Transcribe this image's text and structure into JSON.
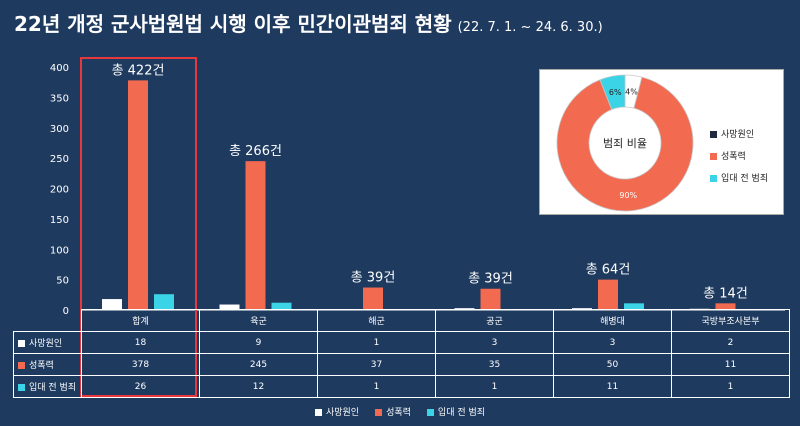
{
  "title": "22년 개정 군사법원법 시행 이후 민간이관범죄 현황",
  "subtitle": "(22. 7. 1. ~ 24. 6. 30.)",
  "colors": {
    "background": "#1e3a5f",
    "death": "#ffffff",
    "sexual": "#f26a50",
    "pre": "#3ad4e6",
    "highlight": "#e8383d"
  },
  "chart_data": {
    "type": "bar",
    "categories": [
      "합계",
      "육군",
      "해군",
      "공군",
      "해병대",
      "국방부조사본부"
    ],
    "series": [
      {
        "name": "사망원인",
        "values": [
          18,
          9,
          1,
          3,
          3,
          2
        ]
      },
      {
        "name": "성폭력",
        "values": [
          378,
          245,
          37,
          35,
          50,
          11
        ]
      },
      {
        "name": "입대 전 범죄",
        "values": [
          26,
          12,
          1,
          1,
          11,
          1
        ]
      }
    ],
    "totals": [
      "총 422건",
      "총 266건",
      "총 39건",
      "총 39건",
      "총 64건",
      "총 14건"
    ],
    "ylim": [
      0,
      400
    ],
    "yticks": [
      0,
      50,
      100,
      150,
      200,
      250,
      300,
      350,
      400
    ],
    "pie": {
      "title": "범죄 비율",
      "slices": [
        {
          "name": "사망원인",
          "value": 4,
          "label": "4%"
        },
        {
          "name": "성폭력",
          "value": 90,
          "label": "90%"
        },
        {
          "name": "입대 전 범죄",
          "value": 6,
          "label": "6%"
        }
      ]
    }
  }
}
